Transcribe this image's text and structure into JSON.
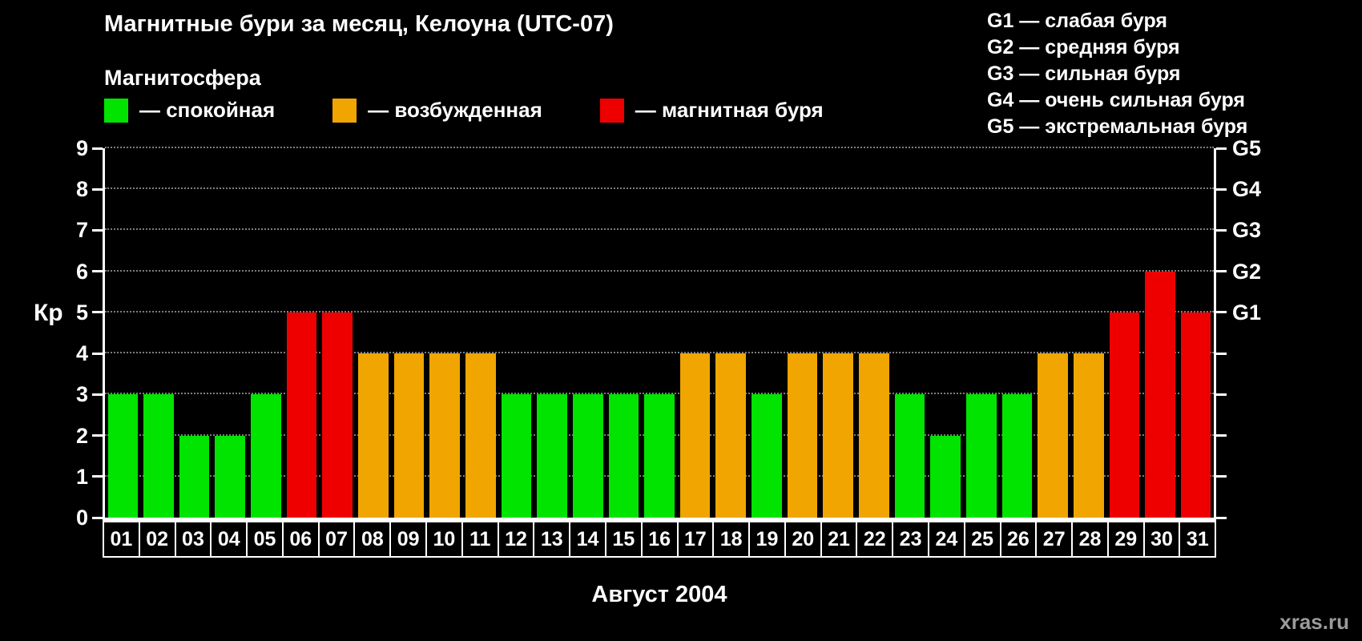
{
  "title": "Магнитные бури за месяц, Келоуна (UTC-07)",
  "legend": {
    "heading": "Магнитосфера",
    "items": [
      {
        "key": "quiet",
        "label": "— спокойная",
        "color": "#00e400"
      },
      {
        "key": "excited",
        "label": "— возбужденная",
        "color": "#f0a500"
      },
      {
        "key": "storm",
        "label": "— магнитная буря",
        "color": "#ee0000"
      }
    ]
  },
  "g_legend": [
    "G1 — слабая буря",
    "G2 — средняя буря",
    "G3 — сильная буря",
    "G4 — очень сильная буря",
    "G5 — экстремальная буря"
  ],
  "watermark": "xras.ru",
  "chart_data": {
    "type": "bar",
    "title": "Магнитные бури за месяц, Келоуна (UTC-07)",
    "xlabel": "Август 2004",
    "ylabel": "Кр",
    "ylim": [
      0,
      9
    ],
    "yticks": [
      0,
      1,
      2,
      3,
      4,
      5,
      6,
      7,
      8,
      9
    ],
    "grid": "dotted horizontal gridlines at each integer Kp level",
    "legend_position": "top",
    "right_axis_ticks": [
      {
        "label": "G1",
        "kp": 5
      },
      {
        "label": "G2",
        "kp": 6
      },
      {
        "label": "G3",
        "kp": 7
      },
      {
        "label": "G4",
        "kp": 8
      },
      {
        "label": "G5",
        "kp": 9
      }
    ],
    "categories": [
      "01",
      "02",
      "03",
      "04",
      "05",
      "06",
      "07",
      "08",
      "09",
      "10",
      "11",
      "12",
      "13",
      "14",
      "15",
      "16",
      "17",
      "18",
      "19",
      "20",
      "21",
      "22",
      "23",
      "24",
      "25",
      "26",
      "27",
      "28",
      "29",
      "30",
      "31"
    ],
    "values": [
      3,
      3,
      2,
      2,
      3,
      5,
      5,
      4,
      4,
      4,
      4,
      3,
      3,
      3,
      3,
      3,
      4,
      4,
      3,
      4,
      4,
      4,
      3,
      2,
      3,
      3,
      4,
      4,
      5,
      6,
      5
    ],
    "statuses": [
      "quiet",
      "quiet",
      "quiet",
      "quiet",
      "quiet",
      "storm",
      "storm",
      "excited",
      "excited",
      "excited",
      "excited",
      "quiet",
      "quiet",
      "quiet",
      "quiet",
      "quiet",
      "excited",
      "excited",
      "quiet",
      "excited",
      "excited",
      "excited",
      "quiet",
      "quiet",
      "quiet",
      "quiet",
      "excited",
      "excited",
      "storm",
      "storm",
      "storm"
    ],
    "colors": {
      "quiet": "#00e400",
      "excited": "#f0a500",
      "storm": "#ee0000"
    }
  }
}
